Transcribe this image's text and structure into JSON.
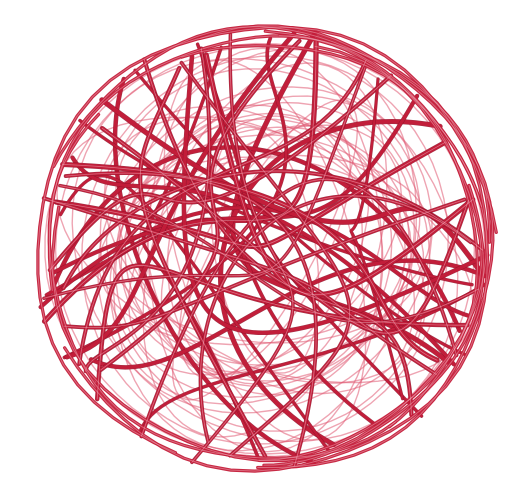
{
  "image": {
    "subject": "wire-ball",
    "background_color": "#ffffff",
    "wire_color": "#c41e3a",
    "wire_dark_color": "#8e1028",
    "wire_light_color": "#e05a72",
    "highlight_color": "#f3b3bf"
  }
}
